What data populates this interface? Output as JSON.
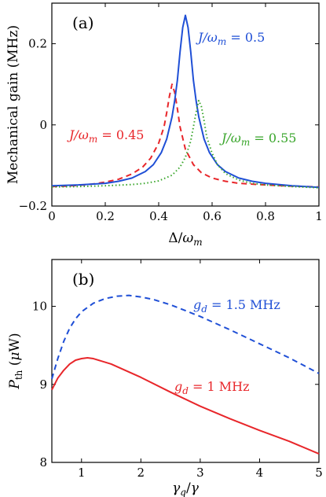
{
  "chart_data": [
    {
      "panel": "(a)",
      "type": "line",
      "xlabel": "Δ/ω_m",
      "ylabel": "Mechanical gain (MHz)",
      "xlim": [
        0,
        1
      ],
      "ylim": [
        -0.2,
        0.3
      ],
      "x_ticks": [
        0,
        0.2,
        0.4,
        0.6,
        0.8,
        1
      ],
      "x_tick_labels": [
        "0",
        "0.2",
        "0.4",
        "0.6",
        "0.8",
        "1"
      ],
      "y_ticks": [
        -0.2,
        0,
        0.2
      ],
      "y_tick_labels": [
        "−0.2",
        "0",
        "0.2"
      ],
      "grid": false,
      "series": [
        {
          "name": "J/ω_m = 0.45",
          "color": "#e8262a",
          "style": "dashed",
          "label": {
            "base": "J/ω",
            "sub": "m",
            "rest": " = 0.45"
          },
          "points": [
            [
              0,
              -0.152
            ],
            [
              0.05,
              -0.151
            ],
            [
              0.1,
              -0.149
            ],
            [
              0.15,
              -0.146
            ],
            [
              0.2,
              -0.141
            ],
            [
              0.25,
              -0.134
            ],
            [
              0.3,
              -0.121
            ],
            [
              0.34,
              -0.104
            ],
            [
              0.37,
              -0.082
            ],
            [
              0.4,
              -0.045
            ],
            [
              0.42,
              -0.005
            ],
            [
              0.43,
              0.03
            ],
            [
              0.44,
              0.07
            ],
            [
              0.45,
              0.1
            ],
            [
              0.46,
              0.08
            ],
            [
              0.47,
              0.04
            ],
            [
              0.48,
              -0.005
            ],
            [
              0.5,
              -0.06
            ],
            [
              0.53,
              -0.098
            ],
            [
              0.56,
              -0.118
            ],
            [
              0.6,
              -0.131
            ],
            [
              0.65,
              -0.139
            ],
            [
              0.7,
              -0.144
            ],
            [
              0.8,
              -0.148
            ],
            [
              0.9,
              -0.151
            ],
            [
              1.0,
              -0.153
            ]
          ]
        },
        {
          "name": "J/ω_m = 0.5",
          "color": "#1f4fd6",
          "style": "solid",
          "label": {
            "base": "J/ω",
            "sub": "m",
            "rest": " = 0.5"
          },
          "points": [
            [
              0,
              -0.15
            ],
            [
              0.1,
              -0.148
            ],
            [
              0.2,
              -0.144
            ],
            [
              0.25,
              -0.139
            ],
            [
              0.3,
              -0.131
            ],
            [
              0.35,
              -0.115
            ],
            [
              0.38,
              -0.098
            ],
            [
              0.41,
              -0.068
            ],
            [
              0.43,
              -0.035
            ],
            [
              0.45,
              0.02
            ],
            [
              0.46,
              0.06
            ],
            [
              0.47,
              0.11
            ],
            [
              0.48,
              0.18
            ],
            [
              0.49,
              0.24
            ],
            [
              0.5,
              0.27
            ],
            [
              0.51,
              0.24
            ],
            [
              0.52,
              0.18
            ],
            [
              0.53,
              0.11
            ],
            [
              0.54,
              0.06
            ],
            [
              0.55,
              0.02
            ],
            [
              0.57,
              -0.035
            ],
            [
              0.59,
              -0.068
            ],
            [
              0.62,
              -0.098
            ],
            [
              0.65,
              -0.115
            ],
            [
              0.7,
              -0.131
            ],
            [
              0.75,
              -0.139
            ],
            [
              0.8,
              -0.144
            ],
            [
              0.9,
              -0.15
            ],
            [
              1.0,
              -0.154
            ]
          ]
        },
        {
          "name": "J/ω_m = 0.55",
          "color": "#3aa62c",
          "style": "dotted",
          "label": {
            "base": "J/ω",
            "sub": "m",
            "rest": " = 0.55"
          },
          "points": [
            [
              0,
              -0.153
            ],
            [
              0.1,
              -0.152
            ],
            [
              0.2,
              -0.15
            ],
            [
              0.3,
              -0.147
            ],
            [
              0.35,
              -0.144
            ],
            [
              0.4,
              -0.138
            ],
            [
              0.45,
              -0.124
            ],
            [
              0.48,
              -0.104
            ],
            [
              0.5,
              -0.08
            ],
            [
              0.52,
              -0.04
            ],
            [
              0.53,
              -0.005
            ],
            [
              0.54,
              0.03
            ],
            [
              0.55,
              0.06
            ],
            [
              0.56,
              0.045
            ],
            [
              0.57,
              0.01
            ],
            [
              0.58,
              -0.03
            ],
            [
              0.6,
              -0.07
            ],
            [
              0.62,
              -0.098
            ],
            [
              0.65,
              -0.12
            ],
            [
              0.7,
              -0.136
            ],
            [
              0.75,
              -0.144
            ],
            [
              0.8,
              -0.148
            ],
            [
              0.9,
              -0.152
            ],
            [
              1.0,
              -0.155
            ]
          ]
        }
      ]
    },
    {
      "panel": "(b)",
      "type": "line",
      "xlabel": "γ_q/γ",
      "ylabel": "P_th (μW)",
      "xlim": [
        0.5,
        5
      ],
      "ylim": [
        8,
        10.6
      ],
      "x_ticks": [
        1,
        2,
        3,
        4,
        5
      ],
      "x_tick_labels": [
        "1",
        "2",
        "3",
        "4",
        "5"
      ],
      "y_ticks": [
        8,
        9,
        10
      ],
      "y_tick_labels": [
        "8",
        "9",
        "10"
      ],
      "grid": false,
      "series": [
        {
          "name": "g_d = 1.5 MHz",
          "color": "#1f4fd6",
          "style": "dashed",
          "label": {
            "base": "g",
            "sub": "d",
            "rest": " = 1.5 MHz"
          },
          "points": [
            [
              0.5,
              9.07
            ],
            [
              0.6,
              9.33
            ],
            [
              0.7,
              9.55
            ],
            [
              0.8,
              9.72
            ],
            [
              0.9,
              9.84
            ],
            [
              1.0,
              9.93
            ],
            [
              1.2,
              10.04
            ],
            [
              1.4,
              10.1
            ],
            [
              1.6,
              10.13
            ],
            [
              1.8,
              10.14
            ],
            [
              2.0,
              10.12
            ],
            [
              2.2,
              10.09
            ],
            [
              2.5,
              10.02
            ],
            [
              3.0,
              9.87
            ],
            [
              3.5,
              9.7
            ],
            [
              4.0,
              9.52
            ],
            [
              4.5,
              9.34
            ],
            [
              5.0,
              9.14
            ]
          ]
        },
        {
          "name": "g_d = 1 MHz",
          "color": "#e8262a",
          "style": "solid",
          "label": {
            "base": "g",
            "sub": "d",
            "rest": " = 1 MHz"
          },
          "points": [
            [
              0.5,
              8.93
            ],
            [
              0.6,
              9.08
            ],
            [
              0.7,
              9.18
            ],
            [
              0.8,
              9.26
            ],
            [
              0.9,
              9.31
            ],
            [
              1.0,
              9.33
            ],
            [
              1.1,
              9.34
            ],
            [
              1.2,
              9.33
            ],
            [
              1.5,
              9.26
            ],
            [
              2.0,
              9.09
            ],
            [
              2.5,
              8.9
            ],
            [
              3.0,
              8.72
            ],
            [
              3.5,
              8.56
            ],
            [
              4.0,
              8.41
            ],
            [
              4.5,
              8.27
            ],
            [
              5.0,
              8.11
            ]
          ]
        }
      ]
    }
  ]
}
